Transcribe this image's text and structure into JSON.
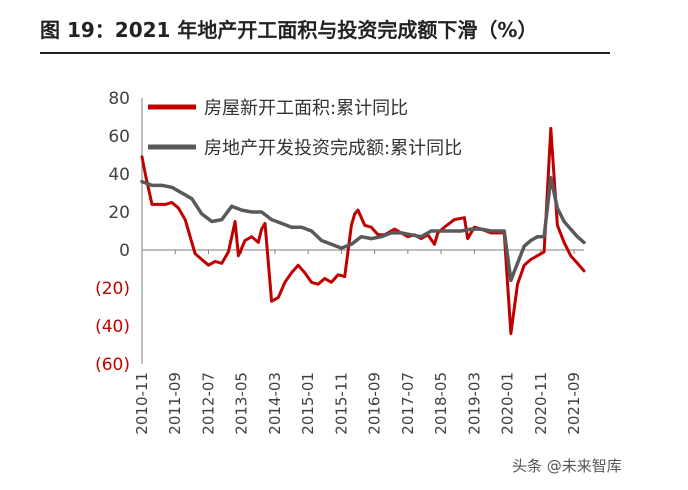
{
  "figure_title": "图 19：2021 年地产开工面积与投资完成额下滑（%）",
  "watermark": "头条 @未来智库",
  "chart_data": {
    "type": "line",
    "ylim": [
      -60,
      80
    ],
    "yticks": [
      80,
      60,
      40,
      20,
      0,
      -20,
      -40,
      -60
    ],
    "ytick_labels": [
      "80",
      "60",
      "40",
      "20",
      "0",
      "(20)",
      "(40)",
      "(60)"
    ],
    "negative_tick_color": "#c00000",
    "x_tick_labels": [
      "2010-11",
      "2011-09",
      "2012-07",
      "2013-05",
      "2014-03",
      "2015-01",
      "2015-11",
      "2016-09",
      "2017-07",
      "2018-05",
      "2019-03",
      "2020-01",
      "2020-11",
      "2021-09"
    ],
    "xlim": [
      "2010-11",
      "2021-12"
    ],
    "legend_position": "top-left",
    "series": [
      {
        "name": "房屋新开工面积:累计同比",
        "color": "#c00000",
        "points": [
          [
            "2010-11",
            49
          ],
          [
            "2010-12",
            40
          ],
          [
            "2011-02",
            24
          ],
          [
            "2011-04",
            24
          ],
          [
            "2011-06",
            24
          ],
          [
            "2011-08",
            25
          ],
          [
            "2011-10",
            22
          ],
          [
            "2011-12",
            16
          ],
          [
            "2012-02",
            4
          ],
          [
            "2012-03",
            -2
          ],
          [
            "2012-05",
            -5
          ],
          [
            "2012-07",
            -8
          ],
          [
            "2012-09",
            -6
          ],
          [
            "2012-11",
            -7
          ],
          [
            "2013-01",
            -1
          ],
          [
            "2013-03",
            15
          ],
          [
            "2013-04",
            -3
          ],
          [
            "2013-06",
            5
          ],
          [
            "2013-08",
            7
          ],
          [
            "2013-10",
            4
          ],
          [
            "2013-11",
            11
          ],
          [
            "2013-12",
            14
          ],
          [
            "2014-02",
            -27
          ],
          [
            "2014-04",
            -25
          ],
          [
            "2014-06",
            -17
          ],
          [
            "2014-08",
            -12
          ],
          [
            "2014-10",
            -8
          ],
          [
            "2014-12",
            -12
          ],
          [
            "2015-02",
            -17
          ],
          [
            "2015-04",
            -18
          ],
          [
            "2015-06",
            -15
          ],
          [
            "2015-08",
            -17
          ],
          [
            "2015-10",
            -13
          ],
          [
            "2015-12",
            -14
          ],
          [
            "2016-02",
            13
          ],
          [
            "2016-03",
            19
          ],
          [
            "2016-04",
            21
          ],
          [
            "2016-06",
            13
          ],
          [
            "2016-08",
            12
          ],
          [
            "2016-10",
            8
          ],
          [
            "2016-12",
            8
          ],
          [
            "2017-03",
            11
          ],
          [
            "2017-05",
            9
          ],
          [
            "2017-07",
            7
          ],
          [
            "2017-09",
            8
          ],
          [
            "2017-11",
            6
          ],
          [
            "2018-01",
            8
          ],
          [
            "2018-03",
            3
          ],
          [
            "2018-04",
            9
          ],
          [
            "2018-06",
            12
          ],
          [
            "2018-09",
            16
          ],
          [
            "2018-12",
            17
          ],
          [
            "2019-01",
            6
          ],
          [
            "2019-03",
            12
          ],
          [
            "2019-05",
            11
          ],
          [
            "2019-08",
            9
          ],
          [
            "2019-12",
            9
          ],
          [
            "2020-02",
            -44
          ],
          [
            "2020-04",
            -18
          ],
          [
            "2020-06",
            -8
          ],
          [
            "2020-08",
            -5
          ],
          [
            "2020-10",
            -3
          ],
          [
            "2020-11",
            -2
          ],
          [
            "2020-12",
            -1
          ],
          [
            "2021-02",
            64
          ],
          [
            "2021-04",
            13
          ],
          [
            "2021-06",
            4
          ],
          [
            "2021-08",
            -3
          ],
          [
            "2021-10",
            -7
          ],
          [
            "2021-12",
            -11
          ]
        ]
      },
      {
        "name": "房地产开发投资完成额:累计同比",
        "color": "#595959",
        "points": [
          [
            "2010-11",
            36
          ],
          [
            "2011-02",
            34
          ],
          [
            "2011-05",
            34
          ],
          [
            "2011-08",
            33
          ],
          [
            "2011-11",
            30
          ],
          [
            "2012-02",
            27
          ],
          [
            "2012-05",
            19
          ],
          [
            "2012-08",
            15
          ],
          [
            "2012-11",
            16
          ],
          [
            "2013-02",
            23
          ],
          [
            "2013-05",
            21
          ],
          [
            "2013-08",
            20
          ],
          [
            "2013-11",
            20
          ],
          [
            "2014-02",
            16
          ],
          [
            "2014-05",
            14
          ],
          [
            "2014-08",
            12
          ],
          [
            "2014-11",
            12
          ],
          [
            "2015-02",
            10
          ],
          [
            "2015-05",
            5
          ],
          [
            "2015-08",
            3
          ],
          [
            "2015-11",
            1
          ],
          [
            "2016-02",
            3
          ],
          [
            "2016-05",
            7
          ],
          [
            "2016-08",
            6
          ],
          [
            "2016-11",
            7
          ],
          [
            "2017-02",
            9
          ],
          [
            "2017-05",
            9
          ],
          [
            "2017-08",
            8
          ],
          [
            "2017-11",
            7
          ],
          [
            "2018-02",
            10
          ],
          [
            "2018-05",
            10
          ],
          [
            "2018-08",
            10
          ],
          [
            "2018-11",
            10
          ],
          [
            "2019-02",
            11
          ],
          [
            "2019-05",
            11
          ],
          [
            "2019-08",
            10
          ],
          [
            "2019-11",
            10
          ],
          [
            "2019-12",
            10
          ],
          [
            "2020-02",
            -16
          ],
          [
            "2020-04",
            -7
          ],
          [
            "2020-06",
            2
          ],
          [
            "2020-08",
            5
          ],
          [
            "2020-10",
            7
          ],
          [
            "2020-12",
            7
          ],
          [
            "2021-02",
            38
          ],
          [
            "2021-04",
            22
          ],
          [
            "2021-06",
            15
          ],
          [
            "2021-08",
            11
          ],
          [
            "2021-10",
            7
          ],
          [
            "2021-12",
            4
          ]
        ]
      }
    ]
  }
}
